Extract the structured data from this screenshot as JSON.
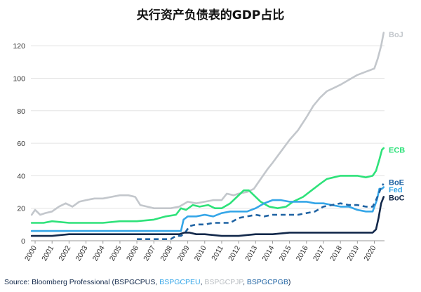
{
  "chart_data": {
    "type": "line",
    "title": "央行资产负债表的GDP占比",
    "xlabel": "",
    "ylabel": "",
    "ylim": [
      0,
      130
    ],
    "xlim": [
      1999.75,
      2020.6
    ],
    "yticks": [
      0,
      20,
      40,
      60,
      80,
      100,
      120
    ],
    "xticks": [
      "2000",
      "2001",
      "2002",
      "2003",
      "2004",
      "2005",
      "2006",
      "2007",
      "2008",
      "2009",
      "2010",
      "2011",
      "2012",
      "2013",
      "2014",
      "2015",
      "2016",
      "2017",
      "2018",
      "2019",
      "2020"
    ],
    "grid": "horizontal",
    "legend": "inline-right",
    "series": [
      {
        "name": "BoJ",
        "color": "#c3c7cc",
        "style": "solid",
        "points": [
          [
            1999.8,
            16
          ],
          [
            2000.0,
            19
          ],
          [
            2000.3,
            16
          ],
          [
            2000.6,
            17
          ],
          [
            2001.0,
            18
          ],
          [
            2001.4,
            21
          ],
          [
            2001.8,
            23
          ],
          [
            2002.2,
            21
          ],
          [
            2002.6,
            24
          ],
          [
            2003.0,
            25
          ],
          [
            2003.5,
            26
          ],
          [
            2004.0,
            26
          ],
          [
            2004.5,
            27
          ],
          [
            2005.0,
            28
          ],
          [
            2005.5,
            28
          ],
          [
            2005.9,
            27
          ],
          [
            2006.2,
            22
          ],
          [
            2006.6,
            21
          ],
          [
            2007.0,
            20
          ],
          [
            2007.5,
            20
          ],
          [
            2008.0,
            20
          ],
          [
            2008.5,
            21
          ],
          [
            2009.0,
            24
          ],
          [
            2009.5,
            23
          ],
          [
            2010.0,
            24
          ],
          [
            2010.5,
            25
          ],
          [
            2011.0,
            25
          ],
          [
            2011.3,
            29
          ],
          [
            2011.7,
            28
          ],
          [
            2012.0,
            29
          ],
          [
            2012.5,
            30
          ],
          [
            2012.9,
            32
          ],
          [
            2013.3,
            38
          ],
          [
            2013.7,
            44
          ],
          [
            2014.0,
            48
          ],
          [
            2014.5,
            55
          ],
          [
            2015.0,
            62
          ],
          [
            2015.5,
            68
          ],
          [
            2016.0,
            76
          ],
          [
            2016.4,
            83
          ],
          [
            2016.8,
            88
          ],
          [
            2017.2,
            92
          ],
          [
            2017.6,
            94
          ],
          [
            2018.0,
            96
          ],
          [
            2018.5,
            99
          ],
          [
            2019.0,
            102
          ],
          [
            2019.5,
            104
          ],
          [
            2020.0,
            106
          ],
          [
            2020.2,
            112
          ],
          [
            2020.4,
            120
          ],
          [
            2020.55,
            128
          ]
        ]
      },
      {
        "name": "ECB",
        "color": "#2ee27a",
        "style": "solid",
        "points": [
          [
            1999.8,
            11
          ],
          [
            2000.5,
            11
          ],
          [
            2001.0,
            12
          ],
          [
            2002.0,
            11
          ],
          [
            2003.0,
            11
          ],
          [
            2004.0,
            11
          ],
          [
            2005.0,
            12
          ],
          [
            2006.0,
            12
          ],
          [
            2007.0,
            13
          ],
          [
            2007.7,
            15
          ],
          [
            2008.3,
            16
          ],
          [
            2008.6,
            20
          ],
          [
            2008.9,
            19
          ],
          [
            2009.3,
            22
          ],
          [
            2009.7,
            21
          ],
          [
            2010.2,
            22
          ],
          [
            2010.6,
            20
          ],
          [
            2011.0,
            20
          ],
          [
            2011.5,
            23
          ],
          [
            2011.9,
            27
          ],
          [
            2012.3,
            31
          ],
          [
            2012.6,
            31
          ],
          [
            2012.9,
            28
          ],
          [
            2013.3,
            24
          ],
          [
            2013.8,
            21
          ],
          [
            2014.3,
            20
          ],
          [
            2014.8,
            21
          ],
          [
            2015.2,
            24
          ],
          [
            2015.8,
            27
          ],
          [
            2016.3,
            31
          ],
          [
            2016.8,
            35
          ],
          [
            2017.2,
            38
          ],
          [
            2017.6,
            39
          ],
          [
            2018.0,
            40
          ],
          [
            2018.5,
            40
          ],
          [
            2019.0,
            40
          ],
          [
            2019.5,
            39
          ],
          [
            2019.9,
            40
          ],
          [
            2020.1,
            43
          ],
          [
            2020.3,
            50
          ],
          [
            2020.45,
            56
          ],
          [
            2020.55,
            57
          ]
        ]
      },
      {
        "name": "Fed",
        "color": "#35a6e8",
        "style": "solid",
        "points": [
          [
            1999.8,
            6
          ],
          [
            2001.0,
            6
          ],
          [
            2002.0,
            6
          ],
          [
            2003.0,
            6
          ],
          [
            2004.0,
            6
          ],
          [
            2005.0,
            6
          ],
          [
            2006.0,
            6
          ],
          [
            2007.0,
            6
          ],
          [
            2008.0,
            6
          ],
          [
            2008.6,
            6
          ],
          [
            2008.75,
            13
          ],
          [
            2009.0,
            15
          ],
          [
            2009.5,
            15
          ],
          [
            2010.0,
            16
          ],
          [
            2010.5,
            15
          ],
          [
            2011.0,
            17
          ],
          [
            2011.5,
            18
          ],
          [
            2012.0,
            18
          ],
          [
            2012.5,
            18
          ],
          [
            2013.0,
            20
          ],
          [
            2013.5,
            23
          ],
          [
            2014.0,
            25
          ],
          [
            2014.5,
            25
          ],
          [
            2015.0,
            24
          ],
          [
            2015.5,
            24
          ],
          [
            2016.0,
            24
          ],
          [
            2016.5,
            23
          ],
          [
            2017.0,
            23
          ],
          [
            2017.5,
            22
          ],
          [
            2018.0,
            21
          ],
          [
            2018.5,
            21
          ],
          [
            2019.0,
            19
          ],
          [
            2019.5,
            18
          ],
          [
            2019.9,
            18
          ],
          [
            2020.15,
            25
          ],
          [
            2020.3,
            32
          ],
          [
            2020.45,
            32
          ],
          [
            2020.55,
            33
          ]
        ]
      },
      {
        "name": "BoE",
        "color": "#1f63a3",
        "style": "dashed",
        "points": [
          [
            2006.0,
            1
          ],
          [
            2006.5,
            1
          ],
          [
            2007.0,
            1
          ],
          [
            2007.5,
            1
          ],
          [
            2008.0,
            1
          ],
          [
            2008.3,
            3
          ],
          [
            2008.6,
            3
          ],
          [
            2008.85,
            5
          ],
          [
            2009.1,
            9
          ],
          [
            2009.5,
            10
          ],
          [
            2010.0,
            10
          ],
          [
            2010.5,
            11
          ],
          [
            2011.0,
            11
          ],
          [
            2011.5,
            11
          ],
          [
            2012.0,
            14
          ],
          [
            2012.5,
            15
          ],
          [
            2013.0,
            16
          ],
          [
            2013.5,
            15
          ],
          [
            2014.0,
            16
          ],
          [
            2014.5,
            16
          ],
          [
            2015.0,
            16
          ],
          [
            2015.5,
            16
          ],
          [
            2016.0,
            17
          ],
          [
            2016.5,
            18
          ],
          [
            2017.0,
            21
          ],
          [
            2017.5,
            22
          ],
          [
            2018.0,
            23
          ],
          [
            2018.5,
            22
          ],
          [
            2019.0,
            22
          ],
          [
            2019.5,
            21
          ],
          [
            2019.9,
            21
          ],
          [
            2020.1,
            25
          ],
          [
            2020.3,
            30
          ],
          [
            2020.45,
            34
          ],
          [
            2020.55,
            35
          ]
        ]
      },
      {
        "name": "BoC",
        "color": "#13294b",
        "style": "solid",
        "points": [
          [
            1999.8,
            3
          ],
          [
            2001.0,
            3
          ],
          [
            2002.0,
            4
          ],
          [
            2003.0,
            4
          ],
          [
            2004.0,
            4
          ],
          [
            2005.0,
            4
          ],
          [
            2006.0,
            4
          ],
          [
            2007.0,
            4
          ],
          [
            2008.0,
            4
          ],
          [
            2008.5,
            4
          ],
          [
            2008.8,
            5
          ],
          [
            2009.1,
            5
          ],
          [
            2009.5,
            4
          ],
          [
            2010.0,
            4
          ],
          [
            2011.0,
            3
          ],
          [
            2012.0,
            3
          ],
          [
            2013.0,
            4
          ],
          [
            2014.0,
            4
          ],
          [
            2015.0,
            5
          ],
          [
            2016.0,
            5
          ],
          [
            2017.0,
            5
          ],
          [
            2018.0,
            5
          ],
          [
            2019.0,
            5
          ],
          [
            2019.9,
            5
          ],
          [
            2020.1,
            7
          ],
          [
            2020.25,
            14
          ],
          [
            2020.4,
            23
          ],
          [
            2020.55,
            27
          ]
        ]
      }
    ],
    "labels": [
      {
        "text": "BoJ",
        "series": "BoJ",
        "y": 127
      },
      {
        "text": "ECB",
        "series": "ECB",
        "y": 56
      },
      {
        "text": "BoE",
        "series": "BoE",
        "y": 36
      },
      {
        "text": "Fed",
        "series": "Fed",
        "y": 31.5
      },
      {
        "text": "BoC",
        "series": "BoC",
        "y": 26.5
      }
    ]
  },
  "source": {
    "prefix": "Source: Bloomberg Professional (",
    "codes": [
      {
        "text": "BSPGCPUS",
        "color": "#13294b"
      },
      {
        "text": "BSPGCPEU",
        "color": "#35a6e8"
      },
      {
        "text": "BSPGCPJP",
        "color": "#b9bdc2"
      },
      {
        "text": "BSPGCPGB",
        "color": "#1f63a3"
      }
    ],
    "separator": ", ",
    "suffix": ")",
    "text_color": "#13294b"
  }
}
